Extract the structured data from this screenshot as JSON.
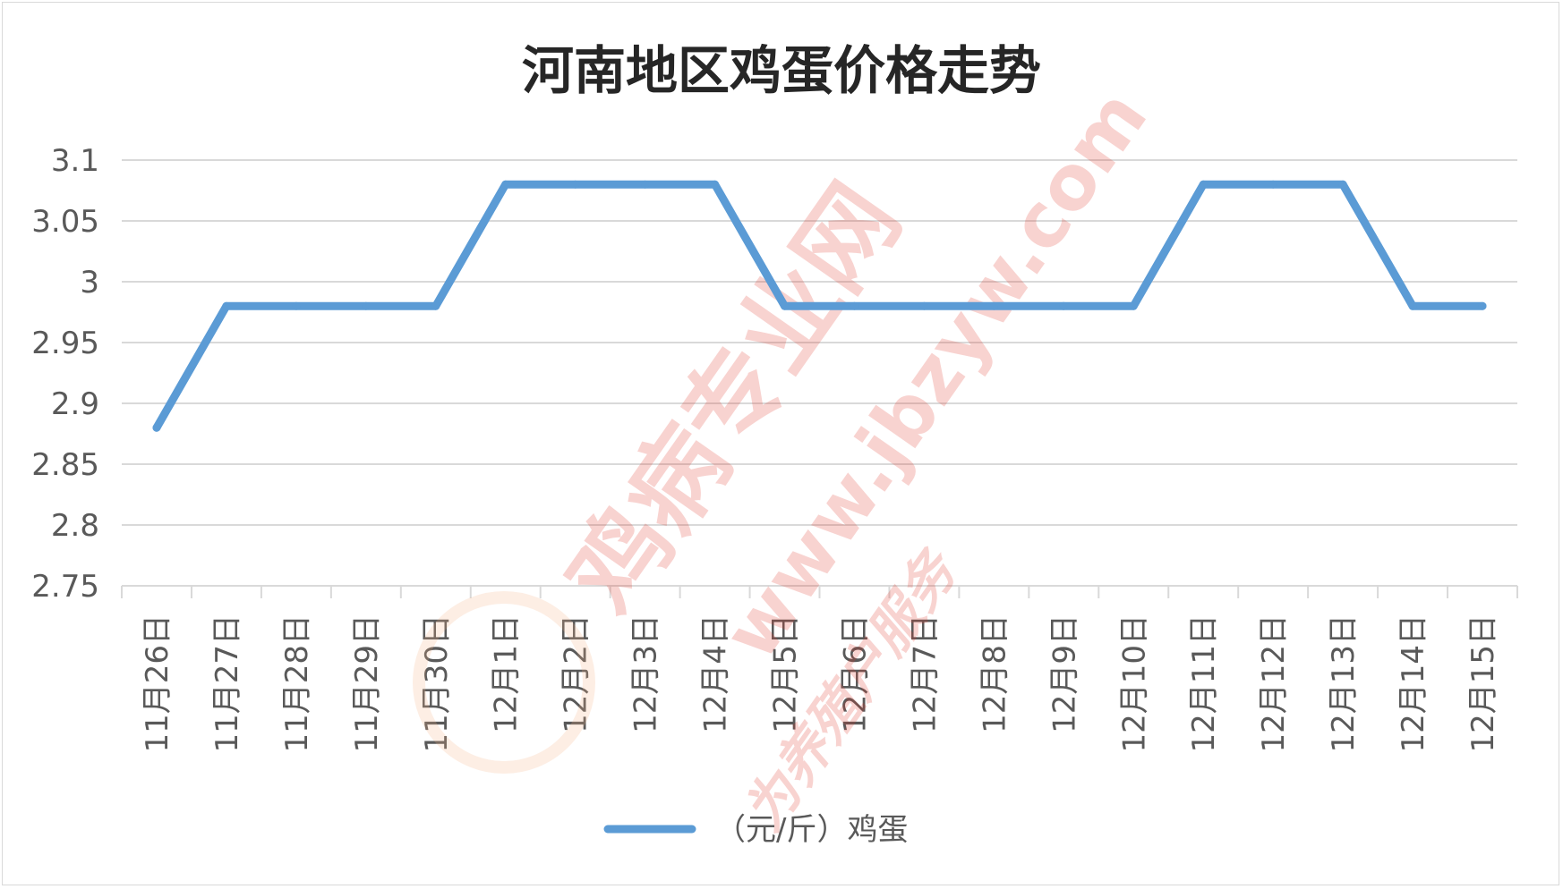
{
  "chart_data": {
    "type": "line",
    "title": "河南地区鸡蛋价格走势",
    "xlabel": "",
    "ylabel": "",
    "ylim": [
      2.75,
      3.1
    ],
    "yticks": [
      "3.1",
      "3.05",
      "3",
      "2.95",
      "2.9",
      "2.85",
      "2.8",
      "2.75"
    ],
    "categories": [
      "11月26日",
      "11月27日",
      "11月28日",
      "11月29日",
      "11月30日",
      "12月1日",
      "12月2日",
      "12月3日",
      "12月4日",
      "12月5日",
      "12月6日",
      "12月7日",
      "12月8日",
      "12月9日",
      "12月10日",
      "12月11日",
      "12月12日",
      "12月13日",
      "12月14日",
      "12月15日"
    ],
    "series": [
      {
        "name": "（元/斤）鸡蛋",
        "color": "#5b9bd5",
        "values": [
          2.88,
          2.98,
          2.98,
          2.98,
          2.98,
          3.08,
          3.08,
          3.08,
          3.08,
          2.98,
          2.98,
          2.98,
          2.98,
          2.98,
          2.98,
          3.08,
          3.08,
          3.08,
          2.98,
          2.98
        ]
      }
    ],
    "grid": true,
    "legend": "bottom"
  },
  "watermark": {
    "site_name": "鸡病专业网",
    "url": "www.jbzyw.com",
    "slogan": "为养殖户服务"
  }
}
